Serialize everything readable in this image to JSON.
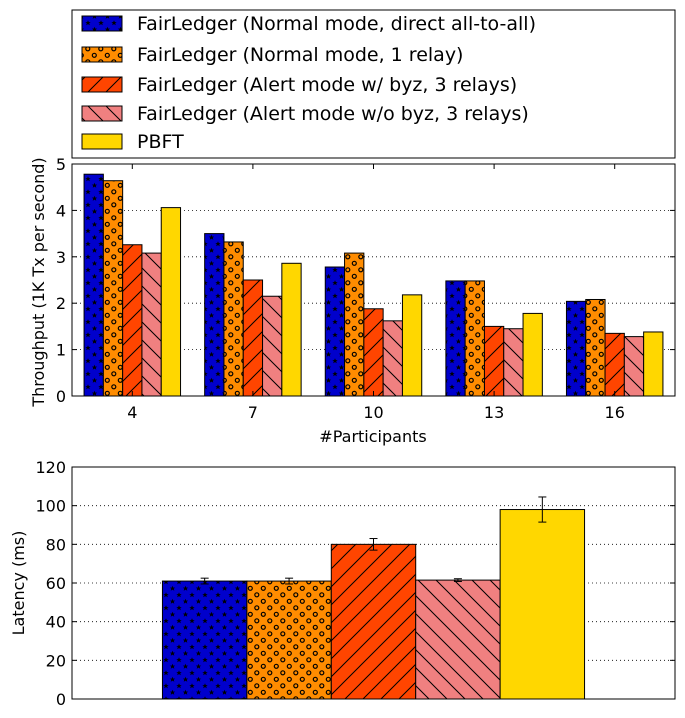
{
  "chart_data": [
    {
      "type": "bar",
      "xlabel": "#Participants",
      "ylabel": "Throughput (1K Tx per second)",
      "categories": [
        "4",
        "7",
        "10",
        "13",
        "16"
      ],
      "ylim": [
        0,
        5
      ],
      "yticks": [
        "0",
        "1",
        "2",
        "3",
        "4",
        "5"
      ],
      "grid": "horizontal dotted",
      "series": [
        {
          "name": "FairLedger (Normal mode, direct all-to-all)",
          "values": [
            4.78,
            3.5,
            2.78,
            2.48,
            2.04
          ]
        },
        {
          "name": "FairLedger (Normal mode, 1 relay)",
          "values": [
            4.64,
            3.32,
            3.08,
            2.48,
            2.08
          ]
        },
        {
          "name": "FairLedger (Alert mode w/ byz, 3 relays)",
          "values": [
            3.26,
            2.5,
            1.88,
            1.5,
            1.35
          ]
        },
        {
          "name": "FairLedger (Alert mode w/o byz, 3 relays)",
          "values": [
            3.08,
            2.15,
            1.62,
            1.45,
            1.28
          ]
        },
        {
          "name": "PBFT",
          "values": [
            4.06,
            2.86,
            2.18,
            1.78,
            1.38
          ]
        }
      ]
    },
    {
      "type": "bar",
      "xlabel": "",
      "ylabel": "Latency (ms)",
      "ylim": [
        0,
        120
      ],
      "yticks": [
        "0",
        "20",
        "40",
        "60",
        "80",
        "100",
        "120"
      ],
      "grid": "horizontal dotted",
      "series": [
        {
          "name": "FairLedger (Normal mode, direct all-to-all)",
          "value": 61,
          "error": 1.5
        },
        {
          "name": "FairLedger (Normal mode, 1 relay)",
          "value": 61,
          "error": 1.5
        },
        {
          "name": "FairLedger (Alert mode w/ byz, 3 relays)",
          "value": 80,
          "error": 3
        },
        {
          "name": "FairLedger (Alert mode w/o byz, 3 relays)",
          "value": 61.5,
          "error": 0.7
        },
        {
          "name": "PBFT",
          "value": 98,
          "error": 6.5
        }
      ]
    }
  ],
  "legend": {
    "placement": "top",
    "entries": [
      "FairLedger (Normal mode, direct all-to-all)",
      "FairLedger (Normal mode, 1 relay)",
      "FairLedger (Alert mode w/ byz, 3 relays)",
      "FairLedger (Alert mode w/o byz, 3 relays)",
      "PBFT"
    ]
  },
  "series_style": [
    {
      "color": "#0000cc",
      "pattern": "stars-icon"
    },
    {
      "color": "#ff8c00",
      "pattern": "circles-icon"
    },
    {
      "color": "#ff4500",
      "pattern": "forward-hatch-icon"
    },
    {
      "color": "#f08080",
      "pattern": "back-hatch-icon"
    },
    {
      "color": "#ffd700",
      "pattern": "solid"
    }
  ]
}
